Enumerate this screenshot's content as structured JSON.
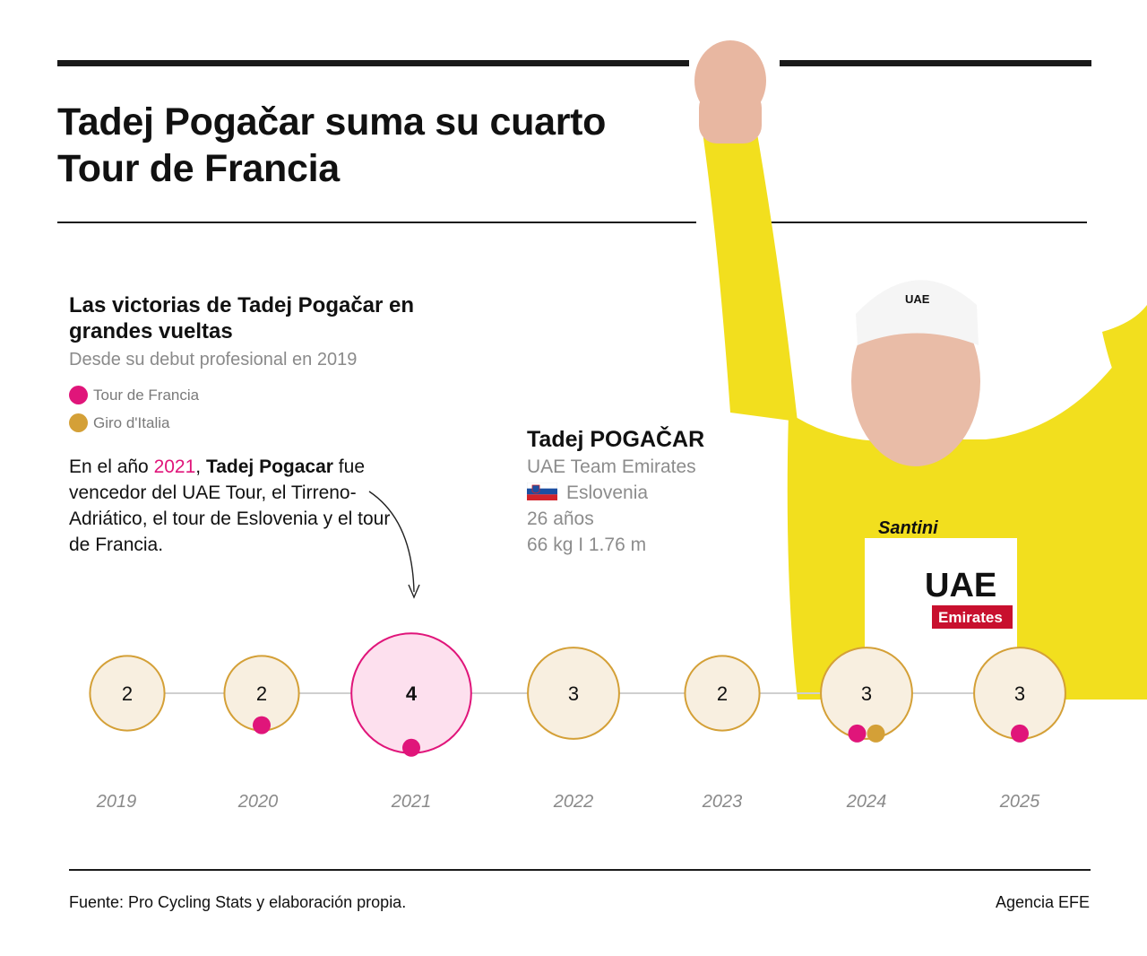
{
  "header": {
    "title": "Tadej Pogačar suma su cuarto Tour de Francia"
  },
  "chart_header": {
    "title": "Las victorias de Tadej Pogačar en grandes vueltas",
    "subtitle": "Desde su debut profesional en 2019"
  },
  "legend": [
    {
      "label": "Tour de Francia",
      "color": "#e0157a"
    },
    {
      "label": "Giro d'Italia",
      "color": "#d4a037"
    }
  ],
  "annotation": {
    "prefix": "En el año ",
    "year": "2021",
    "sep": ", ",
    "name": "Tadej Pogacar",
    "rest": " fue vencedor del UAE Tour, el Tirreno-Adriático, el tour de Eslovenia y el tour de Francia."
  },
  "rider": {
    "name": "Tadej POGAČAR",
    "team": "UAE Team Emirates",
    "country": "Eslovenia",
    "age": "26 años",
    "stats": "66 kg I 1.76 m",
    "jersey_color": "#f2df1e"
  },
  "chart_data": {
    "type": "bubble-timeline",
    "title": "Las victorias de Tadej Pogačar en grandes vueltas",
    "subtitle": "Desde su debut profesional en 2019",
    "categories": [
      "2019",
      "2020",
      "2021",
      "2022",
      "2023",
      "2024",
      "2025"
    ],
    "values": [
      2,
      2,
      4,
      3,
      2,
      3,
      3
    ],
    "highlight": "2021",
    "grand_tour_wins": {
      "Tour de Francia": [
        "2020",
        "2021",
        "2024",
        "2025"
      ],
      "Giro d'Italia": [
        "2024"
      ]
    },
    "colors": {
      "bubble_fill": "#f8efe0",
      "bubble_stroke": "#d4a037",
      "highlight_fill": "#fde0ee",
      "highlight_stroke": "#e0157a"
    }
  },
  "footer": {
    "source": "Fuente: Pro Cycling Stats y elaboración propia.",
    "credit": "Agencia EFE"
  }
}
